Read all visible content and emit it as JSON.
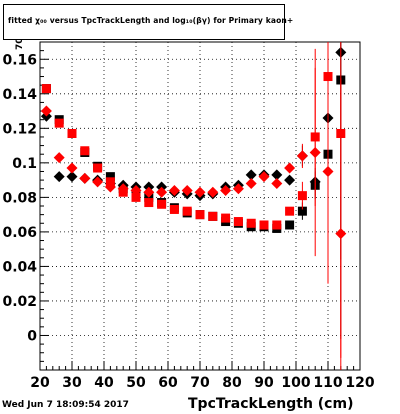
{
  "title": "fitted  χ₀₀  versus TpcTrackLength and log₁₀(βγ) for Primary kaon+",
  "footer_timestamp": "Wed Jun  7 18:09:54 2017",
  "y_axis_label_fragment": "70",
  "chart_data": {
    "type": "scatter",
    "title": "fitted  χ₀₀  versus TpcTrackLength and log₁₀(βγ) for Primary kaon+",
    "xlabel": "TpcTrackLength (cm)",
    "ylabel": "",
    "xlim": [
      20,
      120
    ],
    "ylim": [
      -0.02,
      0.17
    ],
    "x_ticks": [
      20,
      30,
      40,
      50,
      60,
      70,
      80,
      90,
      100,
      110,
      120
    ],
    "y_ticks": [
      0,
      0.02,
      0.04,
      0.06,
      0.08,
      0.1,
      0.12,
      0.14,
      0.16
    ],
    "y_tick_labels": [
      "0",
      "0.02",
      "0.04",
      "0.06",
      "0.08",
      "0.1",
      "0.12",
      "0.14",
      "0.16"
    ],
    "grid": true,
    "series": [
      {
        "marker": "square",
        "color": "#000000",
        "x": [
          22,
          26,
          30,
          34,
          38,
          42,
          46,
          50,
          54,
          58,
          62,
          66,
          70,
          74,
          78,
          82,
          86,
          90,
          94,
          98,
          102,
          106,
          110,
          114
        ],
        "y": [
          0.143,
          0.125,
          0.117,
          0.106,
          0.098,
          0.092,
          0.085,
          0.082,
          0.08,
          0.077,
          0.074,
          0.071,
          0.07,
          0.069,
          0.066,
          0.065,
          0.063,
          0.063,
          0.062,
          0.064,
          0.072,
          0.087,
          0.105,
          0.148
        ],
        "err": [
          0,
          0,
          0,
          0,
          0,
          0,
          0,
          0,
          0,
          0,
          0,
          0,
          0,
          0,
          0,
          0,
          0,
          0,
          0,
          0,
          0.005,
          0.008,
          0.02,
          0.15
        ]
      },
      {
        "marker": "diamond",
        "color": "#000000",
        "x": [
          22,
          26,
          30,
          34,
          38,
          42,
          46,
          50,
          54,
          58,
          62,
          66,
          70,
          74,
          78,
          82,
          86,
          90,
          94,
          98,
          102,
          106,
          110,
          114
        ],
        "y": [
          0.127,
          0.092,
          0.092,
          0.091,
          0.09,
          0.088,
          0.087,
          0.086,
          0.086,
          0.086,
          0.083,
          0.082,
          0.081,
          0.082,
          0.086,
          0.087,
          0.093,
          0.093,
          0.093,
          0.09,
          0.104,
          0.089,
          0.126,
          0.164
        ],
        "err": [
          0,
          0,
          0,
          0,
          0,
          0,
          0,
          0,
          0,
          0,
          0,
          0,
          0,
          0,
          0,
          0,
          0,
          0,
          0,
          0,
          0.006,
          0.008,
          0.04,
          0.12
        ]
      },
      {
        "marker": "square",
        "color": "#ff0000",
        "x": [
          22,
          26,
          30,
          34,
          38,
          42,
          46,
          50,
          54,
          58,
          62,
          66,
          70,
          74,
          78,
          82,
          86,
          90,
          94,
          98,
          102,
          106,
          110,
          114
        ],
        "y": [
          0.143,
          0.123,
          0.117,
          0.107,
          0.097,
          0.089,
          0.083,
          0.08,
          0.077,
          0.076,
          0.073,
          0.072,
          0.07,
          0.069,
          0.068,
          0.066,
          0.065,
          0.064,
          0.064,
          0.072,
          0.081,
          0.115,
          0.15,
          0.117
        ],
        "err": [
          0,
          0,
          0,
          0,
          0,
          0,
          0,
          0,
          0,
          0,
          0,
          0,
          0,
          0,
          0,
          0,
          0,
          0,
          0,
          0,
          0.008,
          0.04,
          0.12,
          0.13
        ]
      },
      {
        "marker": "diamond",
        "color": "#ff0000",
        "x": [
          22,
          26,
          30,
          34,
          38,
          42,
          46,
          50,
          54,
          58,
          62,
          66,
          70,
          74,
          78,
          82,
          86,
          90,
          94,
          98,
          102,
          106,
          110,
          114
        ],
        "y": [
          0.13,
          0.103,
          0.097,
          0.091,
          0.089,
          0.086,
          0.085,
          0.084,
          0.083,
          0.083,
          0.084,
          0.084,
          0.083,
          0.083,
          0.084,
          0.085,
          0.088,
          0.092,
          0.088,
          0.097,
          0.104,
          0.106,
          0.095,
          0.059
        ],
        "err": [
          0,
          0,
          0,
          0,
          0,
          0,
          0,
          0,
          0,
          0,
          0,
          0,
          0,
          0,
          0,
          0,
          0,
          0,
          0,
          0,
          0.007,
          0.06,
          0.06,
          0.09
        ]
      }
    ]
  }
}
